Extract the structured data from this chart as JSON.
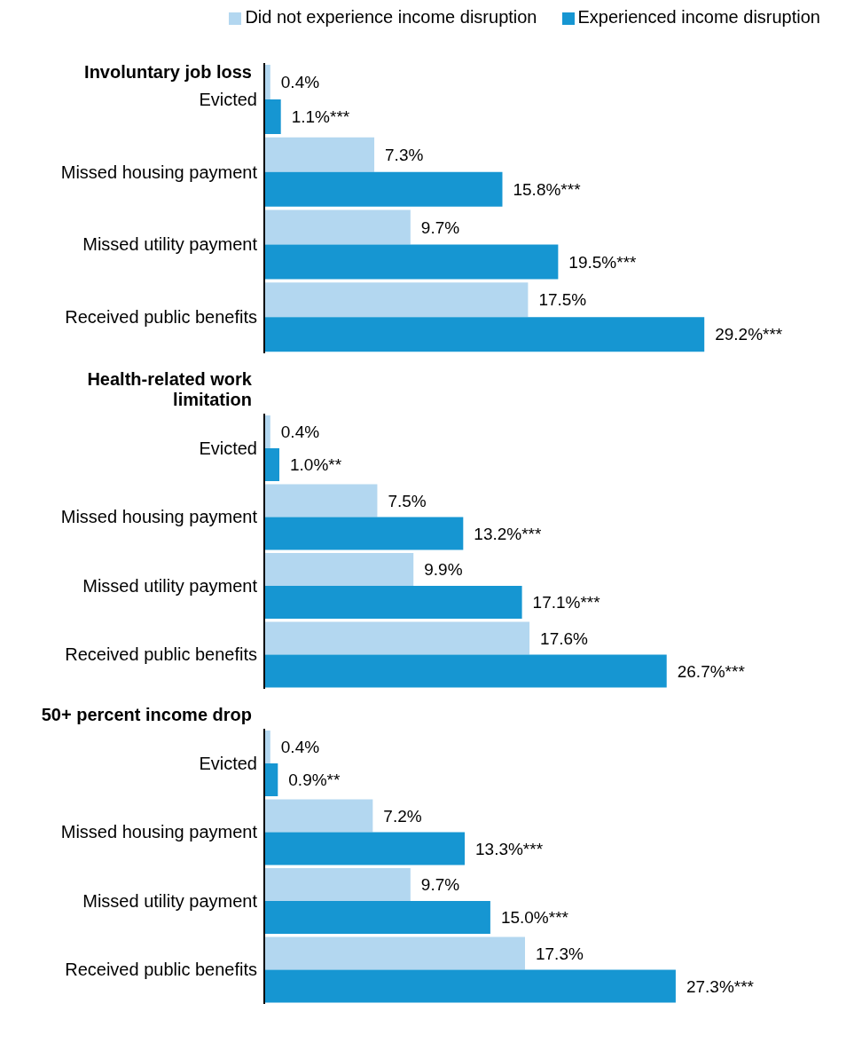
{
  "chart_data": [
    {
      "type": "bar",
      "orientation": "horizontal",
      "title": "Involuntary job loss",
      "legend": "top right",
      "categories": [
        "Evicted",
        "Missed housing payment",
        "Missed utility payment",
        "Received public benefits"
      ],
      "series": [
        {
          "name": "Did not experience income disruption",
          "color": "#b3d7f0",
          "values": [
            0.4,
            7.3,
            9.7,
            17.5
          ],
          "value_labels": [
            "0.4%",
            "7.3%",
            "9.7%",
            "17.5%"
          ]
        },
        {
          "name": "Experienced income disruption",
          "color": "#1696d2",
          "values": [
            1.1,
            15.8,
            19.5,
            29.2
          ],
          "value_labels": [
            "1.1%***",
            "15.8%***",
            "19.5%***",
            "29.2%***"
          ]
        }
      ]
    },
    {
      "type": "bar",
      "orientation": "horizontal",
      "title": "Health-related work limitation",
      "categories": [
        "Evicted",
        "Missed housing payment",
        "Missed utility payment",
        "Received public benefits"
      ],
      "series": [
        {
          "color": "#b3d7f0",
          "values": [
            0.4,
            7.5,
            9.9,
            17.6
          ],
          "value_labels": [
            "0.4%",
            "7.5%",
            "9.9%",
            "17.6%"
          ]
        },
        {
          "color": "#1696d2",
          "values": [
            1.0,
            13.2,
            17.1,
            26.7
          ],
          "value_labels": [
            "1.0%**",
            "13.2%***",
            "17.1%***",
            "26.7%***"
          ]
        }
      ]
    },
    {
      "type": "bar",
      "orientation": "horizontal",
      "title": "50+ percent income drop",
      "categories": [
        "Evicted",
        "Missed housing payment",
        "Missed utility payment",
        "Received public benefits"
      ],
      "series": [
        {
          "color": "#b3d7f0",
          "values": [
            0.4,
            7.2,
            9.7,
            17.3
          ],
          "value_labels": [
            "0.4%",
            "7.2%",
            "9.7%",
            "17.3%"
          ]
        },
        {
          "color": "#1696d2",
          "values": [
            0.9,
            13.3,
            15.0,
            27.3
          ],
          "value_labels": [
            "0.9%**",
            "13.3%***",
            "15.0%***",
            "27.3%***"
          ]
        }
      ]
    }
  ]
}
